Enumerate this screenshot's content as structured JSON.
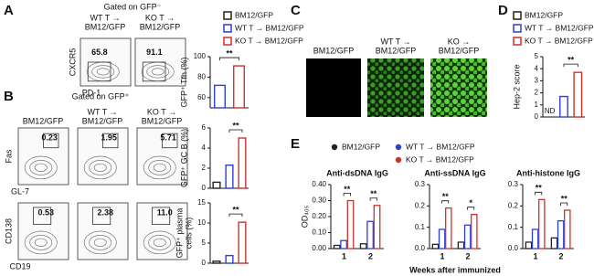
{
  "panel_labels": [
    "A",
    "B",
    "C",
    "D",
    "E"
  ],
  "flow_a": {
    "title": "Gated on GFP⁻",
    "headers": [
      [
        "WT T →",
        "BM12/GFP"
      ],
      [
        "KO T →",
        "BM12/GFP"
      ]
    ],
    "y_label": "CXCR5",
    "x_label": "PD-1",
    "percents": [
      "65.8",
      "91.1"
    ]
  },
  "flow_b": {
    "title": "Gated on GFP⁺",
    "headers": [
      [
        "BM12/GFP"
      ],
      [
        "WT T →",
        "BM12/GFP"
      ],
      [
        "KO T →",
        "BM12/GFP"
      ]
    ],
    "rows": [
      {
        "y_label": "Fas",
        "x_label": "GL-7",
        "percents": [
          "0.23",
          "1.95",
          "5.71"
        ]
      },
      {
        "y_label": "CD138",
        "x_label": "CD19",
        "percents": [
          "0.53",
          "2.38",
          "11.0"
        ]
      }
    ]
  },
  "panel_c": {
    "headers": [
      [
        "BM12/GFP"
      ],
      [
        "WT T →",
        "BM12/GFP"
      ],
      [
        "KO →",
        "BM12/GFP"
      ]
    ]
  },
  "legends": [
    {
      "marker": "square",
      "entries": [
        {
          "label": "BM12/GFP",
          "color": "#222222"
        },
        {
          "label": "WT T → BM12/GFP",
          "color": "#2b3fd9"
        },
        {
          "label": "KO T → BM12/GFP",
          "color": "#d0312d"
        }
      ]
    },
    {
      "marker": "square",
      "entries": [
        {
          "label": "BM12/GFP",
          "color": "#222222"
        },
        {
          "label": "WT T → BM12/GFP",
          "color": "#2b3fd9"
        },
        {
          "label": "KO T → BM12/GFP",
          "color": "#d0312d"
        }
      ]
    },
    {
      "marker": "dot",
      "entries": [
        {
          "label": "BM12/GFP",
          "color": "#222222"
        },
        {
          "label": "WT T → BM12/GFP",
          "color": "#2b3fd9"
        },
        {
          "label": "KO T → BM12/GFP",
          "color": "#d0312d"
        }
      ]
    }
  ],
  "chart_data": [
    {
      "type": "bar",
      "ylabel": "GFP⁺ Tfh (%)",
      "values": [
        72,
        91
      ],
      "colors": [
        "#2b3fd9",
        "#d0312d"
      ],
      "ylim": [
        50,
        100
      ],
      "yticks": [
        60,
        80,
        100
      ],
      "annotation": "**"
    },
    {
      "type": "bar",
      "ylabel": "GFP⁺ GC B (%)",
      "values": [
        0.6,
        2.3,
        5.0
      ],
      "colors": [
        "#222222",
        "#2b3fd9",
        "#d0312d"
      ],
      "ylim": [
        0,
        6
      ],
      "yticks": [
        0,
        2,
        4,
        6
      ],
      "annotation": "**"
    },
    {
      "type": "bar",
      "ylabel": [
        "GFP⁺ plasma",
        "cells (%)"
      ],
      "values": [
        0.5,
        1.9,
        10.2
      ],
      "colors": [
        "#222222",
        "#2b3fd9",
        "#d0312d"
      ],
      "ylim": [
        0,
        15
      ],
      "yticks": [
        0,
        5,
        10,
        15
      ],
      "annotation": "**"
    },
    {
      "type": "bar",
      "ylabel": "Hep-2 score",
      "values": [
        null,
        1.7,
        3.7
      ],
      "value_labels": [
        "ND",
        null,
        null
      ],
      "colors": [
        "#222222",
        "#2b3fd9",
        "#d0312d"
      ],
      "ylim": [
        0,
        5
      ],
      "yticks": [
        0,
        1,
        2,
        3,
        4,
        5
      ],
      "annotation": "**"
    },
    {
      "type": "grouped-bar",
      "title": "Anti-dsDNA IgG",
      "ylabel": "OD₄₀₅",
      "categories": [
        "1",
        "2"
      ],
      "series": [
        {
          "color": "#222222",
          "values": [
            0.02,
            0.03
          ]
        },
        {
          "color": "#2b3fd9",
          "values": [
            0.05,
            0.17
          ]
        },
        {
          "color": "#d0312d",
          "values": [
            0.3,
            0.27
          ]
        }
      ],
      "ylim": [
        0,
        0.4
      ],
      "yticks": [
        {
          "value": 0,
          "label": "0.00"
        },
        {
          "value": 0.1,
          "label": "0.10"
        },
        {
          "value": 0.2,
          "label": "0.20"
        },
        {
          "value": 0.3,
          "label": "0.30"
        },
        {
          "value": 0.4,
          "label": "0.40"
        }
      ],
      "annotations": [
        "**",
        "**"
      ]
    },
    {
      "type": "grouped-bar",
      "title": "Anti-ssDNA IgG",
      "xlabel": "Weeks after immunized",
      "categories": [
        "1",
        "2"
      ],
      "series": [
        {
          "color": "#222222",
          "values": [
            0.02,
            0.03
          ]
        },
        {
          "color": "#2b3fd9",
          "values": [
            0.09,
            0.11
          ]
        },
        {
          "color": "#d0312d",
          "values": [
            0.19,
            0.16
          ]
        }
      ],
      "ylim": [
        0,
        0.3
      ],
      "yticks": [
        {
          "value": 0,
          "label": "0.0"
        },
        0.1,
        0.2,
        0.3
      ],
      "annotations": [
        "**",
        "*"
      ]
    },
    {
      "type": "grouped-bar",
      "title": "Anti-histone IgG",
      "categories": [
        "1",
        "2"
      ],
      "series": [
        {
          "color": "#222222",
          "values": [
            0.03,
            0.05
          ]
        },
        {
          "color": "#2b3fd9",
          "values": [
            0.09,
            0.13
          ]
        },
        {
          "color": "#d0312d",
          "values": [
            0.23,
            0.18
          ]
        }
      ],
      "ylim": [
        0,
        0.3
      ],
      "yticks": [
        {
          "value": 0,
          "label": "0.0"
        },
        0.1,
        0.2,
        0.3
      ],
      "annotations": [
        "**",
        "**"
      ]
    }
  ]
}
